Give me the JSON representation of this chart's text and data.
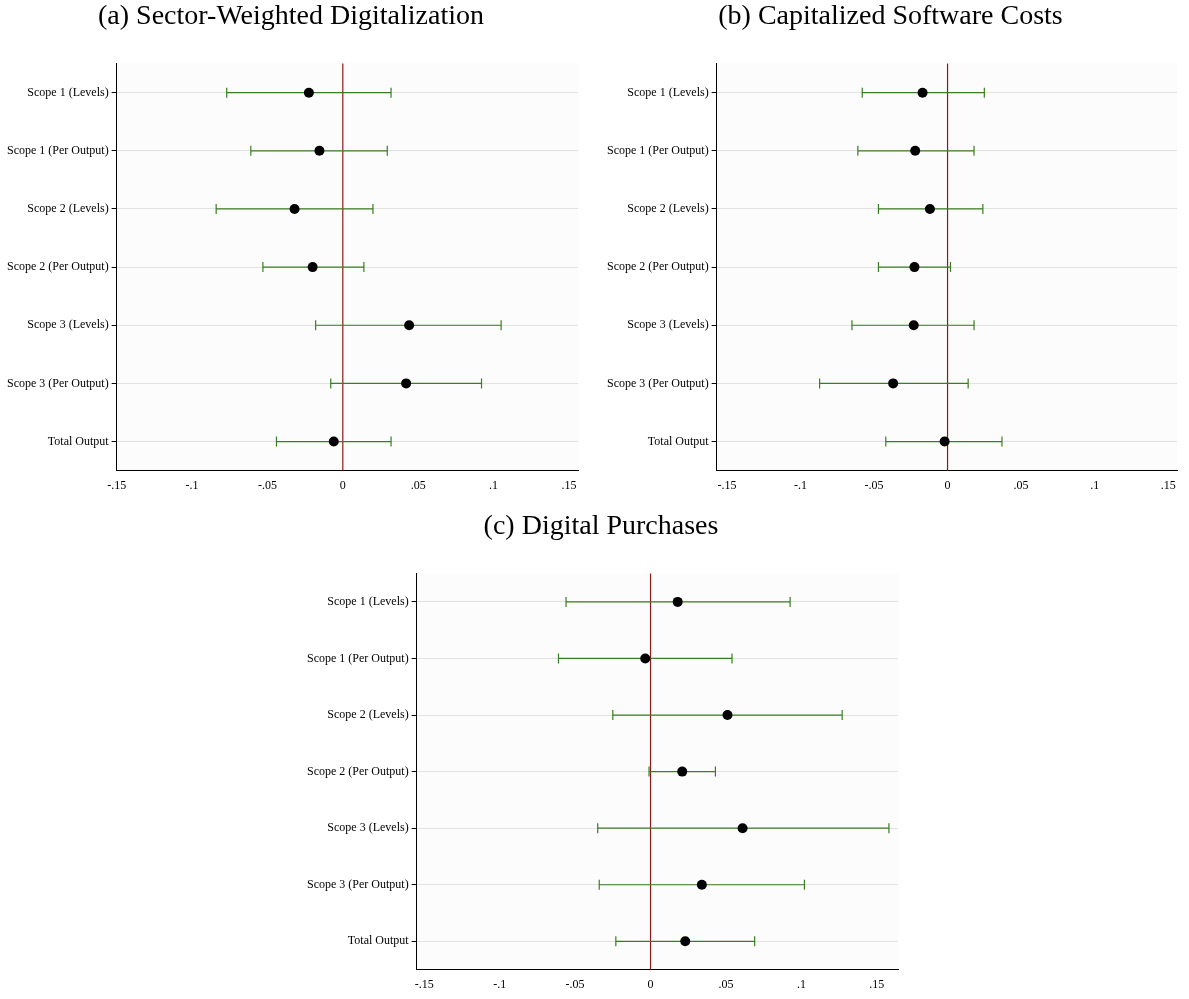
{
  "chart_data": [
    {
      "type": "scatter",
      "title": "(a) Sector-Weighted Digitalization",
      "orientation": "horizontal",
      "categories": [
        "Scope 1 (Levels)",
        "Scope 1 (Per Output)",
        "Scope 2 (Levels)",
        "Scope 2 (Per Output)",
        "Scope 3 (Levels)",
        "Scope 3 (Per Output)",
        "Total Output"
      ],
      "series": [
        {
          "color": "#000000",
          "values": [
            -0.0225,
            -0.0155,
            -0.032,
            -0.02,
            0.044,
            0.042,
            -0.006
          ],
          "errors": [
            [
              -0.077,
              0.032
            ],
            [
              -0.061,
              0.0295
            ],
            [
              -0.084,
              0.02
            ],
            [
              -0.053,
              0.014
            ],
            [
              -0.018,
              0.105
            ],
            [
              -0.008,
              0.092
            ],
            [
              -0.044,
              0.032
            ]
          ]
        }
      ],
      "xlim": [
        -0.15,
        0.156
      ],
      "xticks": [
        {
          "value": -0.15,
          "label": "-.15"
        },
        {
          "value": -0.1,
          "label": "-.1"
        },
        {
          "value": -0.05,
          "label": "-.05"
        },
        {
          "value": 0,
          "label": "0"
        },
        {
          "value": 0.05,
          "label": ".05"
        },
        {
          "value": 0.1,
          "label": ".1"
        },
        {
          "value": 0.15,
          "label": ".15"
        }
      ],
      "ref_lines": [
        {
          "axis": "x",
          "value": 0,
          "color": "#8b1a1a"
        }
      ],
      "grid": "y",
      "marker": "circle",
      "legend": false
    },
    {
      "type": "scatter",
      "title": "(b) Capitalized Software Costs",
      "orientation": "horizontal",
      "categories": [
        "Scope 1 (Levels)",
        "Scope 1 (Per Output)",
        "Scope 2 (Levels)",
        "Scope 2 (Per Output)",
        "Scope 3 (Levels)",
        "Scope 3 (Per Output)",
        "Total Output"
      ],
      "series": [
        {
          "color": "#000000",
          "values": [
            -0.017,
            -0.022,
            -0.012,
            -0.0225,
            -0.023,
            -0.037,
            -0.002
          ],
          "errors": [
            [
              -0.058,
              0.025
            ],
            [
              -0.061,
              0.018
            ],
            [
              -0.047,
              0.024
            ],
            [
              -0.047,
              0.002
            ],
            [
              -0.065,
              0.018
            ],
            [
              -0.087,
              0.014
            ],
            [
              -0.042,
              0.037
            ]
          ]
        }
      ],
      "xlim": [
        -0.157,
        0.156
      ],
      "xticks": [
        {
          "value": -0.15,
          "label": "-.15"
        },
        {
          "value": -0.1,
          "label": "-.1"
        },
        {
          "value": -0.05,
          "label": "-.05"
        },
        {
          "value": 0,
          "label": "0"
        },
        {
          "value": 0.05,
          "label": ".05"
        },
        {
          "value": 0.1,
          "label": ".1"
        },
        {
          "value": 0.15,
          "label": ".15"
        }
      ],
      "ref_lines": [
        {
          "axis": "x",
          "value": 0,
          "color": "#8b1a1a"
        }
      ],
      "grid": "y",
      "marker": "circle",
      "legend": false
    },
    {
      "type": "scatter",
      "title": "(c) Digital Purchases",
      "orientation": "horizontal",
      "categories": [
        "Scope 1 (Levels)",
        "Scope 1 (Per Output)",
        "Scope 2 (Levels)",
        "Scope 2 (Per Output)",
        "Scope 3 (Levels)",
        "Scope 3 (Per Output)",
        "Total Output"
      ],
      "series": [
        {
          "color": "#000000",
          "values": [
            0.018,
            -0.0035,
            0.051,
            0.021,
            0.061,
            0.034,
            0.023
          ],
          "errors": [
            [
              -0.056,
              0.0925
            ],
            [
              -0.061,
              0.054
            ],
            [
              -0.025,
              0.127
            ],
            [
              -0.001,
              0.043
            ],
            [
              -0.035,
              0.158
            ],
            [
              -0.034,
              0.102
            ],
            [
              -0.023,
              0.069
            ]
          ]
        }
      ],
      "xlim": [
        -0.155,
        0.164
      ],
      "xticks": [
        {
          "value": -0.15,
          "label": "-.15"
        },
        {
          "value": -0.1,
          "label": "-.1"
        },
        {
          "value": -0.05,
          "label": "-.05"
        },
        {
          "value": 0,
          "label": "0"
        },
        {
          "value": 0.05,
          "label": ".05"
        },
        {
          "value": 0.1,
          "label": ".1"
        },
        {
          "value": 0.15,
          "label": ".15"
        }
      ],
      "ref_lines": [
        {
          "axis": "x",
          "value": 0,
          "color": "#8b1a1a"
        }
      ],
      "grid": "y",
      "marker": "circle",
      "legend": false
    }
  ]
}
